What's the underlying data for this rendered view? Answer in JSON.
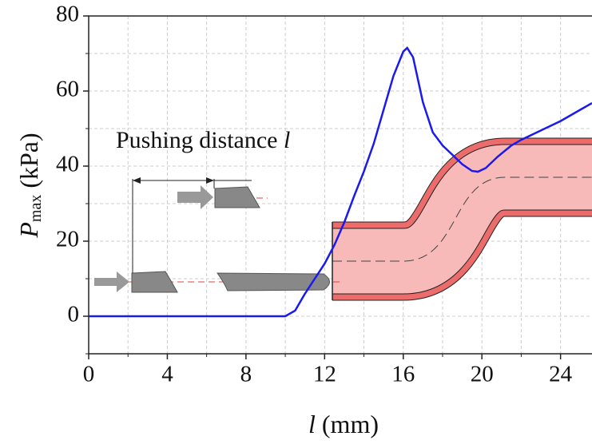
{
  "chart_data": {
    "type": "line",
    "annotation": "Pushing distance",
    "annotation_symbol": "l",
    "xlabel": {
      "symbol": "l",
      "unit": "(mm)"
    },
    "ylabel": {
      "symbol": "P",
      "subscript": "max",
      "unit": "(kPa)"
    },
    "xlim": [
      0,
      25.6
    ],
    "ylim": [
      -10,
      80
    ],
    "xticks": [
      0,
      4,
      8,
      12,
      16,
      20,
      24
    ],
    "yticks": [
      0,
      20,
      40,
      60,
      80
    ],
    "xminorticks": [
      2,
      6,
      10,
      14,
      18,
      22
    ],
    "yminorticks": [
      -10,
      10,
      30,
      50,
      70
    ],
    "grid": true,
    "series": [
      {
        "color": "#1a1aee",
        "x": [
          0,
          10,
          10.5,
          11,
          11.5,
          12,
          12.5,
          13,
          13.5,
          14,
          14.5,
          15,
          15.5,
          16,
          16.2,
          16.5,
          17,
          17.5,
          18,
          18.5,
          19,
          19.5,
          19.8,
          20.2,
          20.8,
          21.5,
          22,
          23,
          24,
          25,
          25.6
        ],
        "values": [
          0,
          0,
          1.5,
          6,
          10,
          14,
          19,
          25,
          32,
          38.6,
          46,
          55,
          64,
          70.5,
          71.5,
          69,
          57,
          49,
          45.5,
          43,
          40.5,
          38.7,
          38.5,
          39.5,
          42.5,
          45.5,
          47,
          49.5,
          52,
          55,
          56.8
        ]
      }
    ]
  }
}
